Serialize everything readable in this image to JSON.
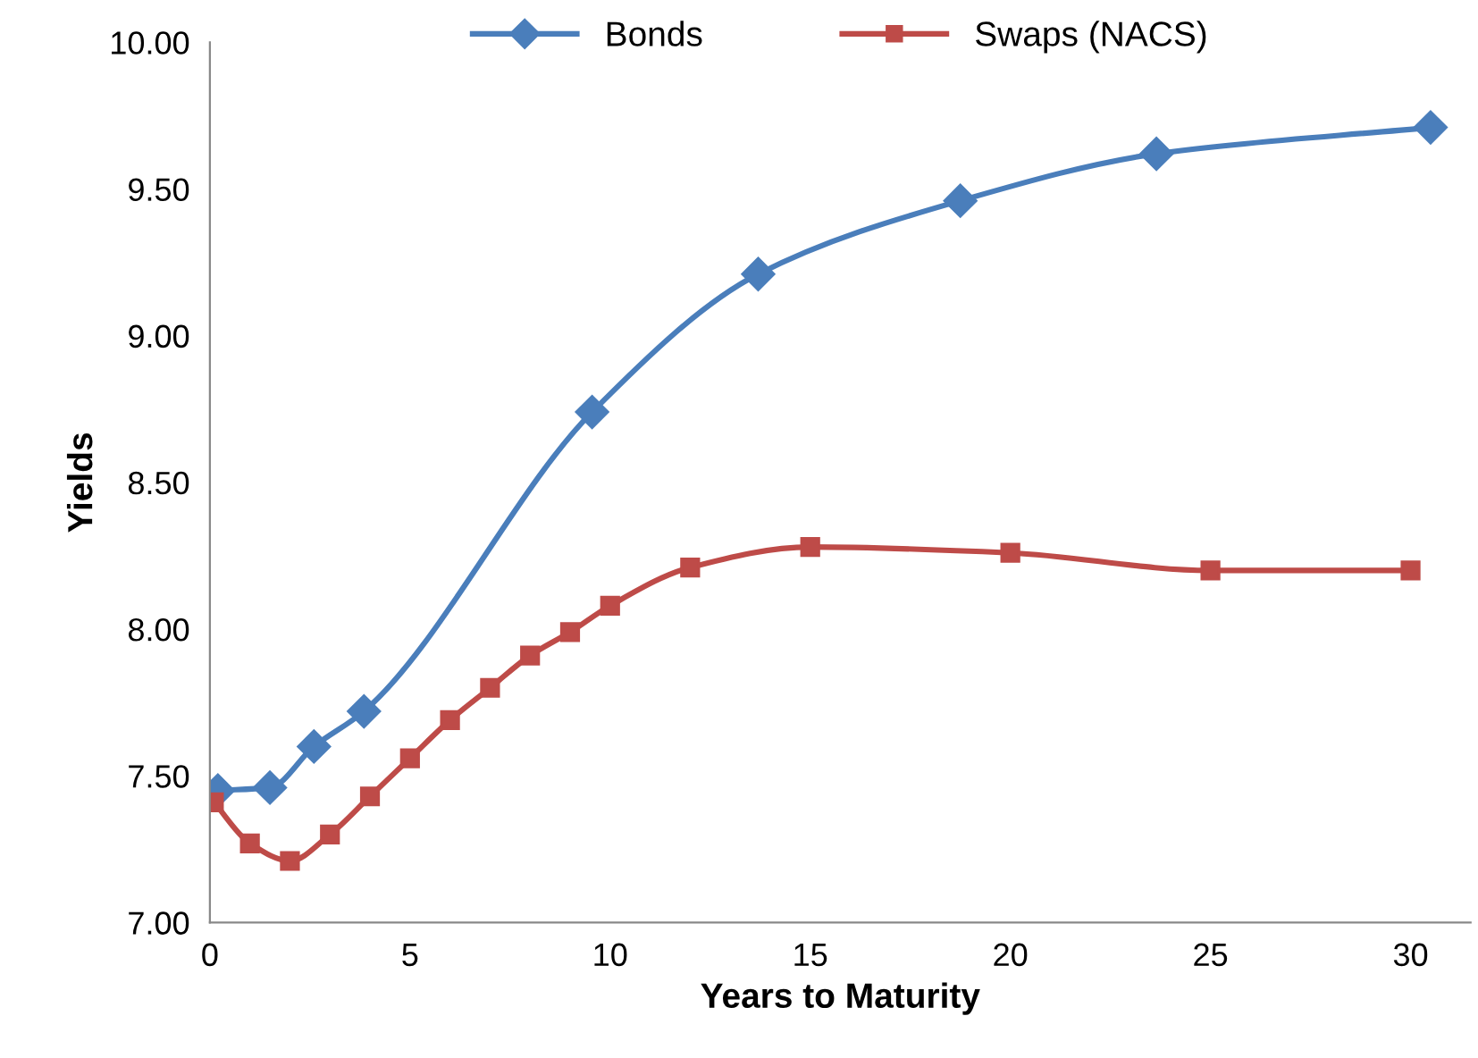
{
  "chart_data": {
    "type": "line",
    "xlabel": "Years to Maturity",
    "ylabel": "Yields",
    "xlim": [
      0,
      31.5
    ],
    "xticks": [
      0,
      5,
      10,
      15,
      20,
      25,
      30
    ],
    "ylim": [
      7,
      10
    ],
    "yticks": [
      {
        "value": 7,
        "label": "7.00"
      },
      {
        "value": 7.5,
        "label": "7.50"
      },
      {
        "value": 8,
        "label": "8.00"
      },
      {
        "value": 8.5,
        "label": "8.50"
      },
      {
        "value": 9,
        "label": "9.00"
      },
      {
        "value": 9.5,
        "label": "9.50"
      },
      {
        "value": 10,
        "label": "10.00"
      }
    ],
    "grid": false,
    "legend": "top",
    "line_style": "solid",
    "series": [
      {
        "name": "Bonds",
        "color": "#4a7ebb",
        "marker": "diamond",
        "x": [
          0.2,
          1.5,
          2.6,
          3.85,
          9.55,
          13.7,
          18.75,
          23.65,
          30.5
        ],
        "values": [
          7.45,
          7.46,
          7.6,
          7.72,
          8.74,
          9.21,
          9.46,
          9.62,
          9.71
        ]
      },
      {
        "name": "Swaps (NACS)",
        "color": "#be4b48",
        "marker": "square",
        "x": [
          0.1,
          1,
          2,
          3,
          4,
          5,
          6,
          7,
          8,
          9,
          10,
          12,
          15,
          20,
          25,
          30
        ],
        "values": [
          7.41,
          7.27,
          7.21,
          7.3,
          7.43,
          7.56,
          7.69,
          7.8,
          7.91,
          7.99,
          8.08,
          8.21,
          8.28,
          8.26,
          8.2,
          8.2
        ]
      }
    ]
  }
}
